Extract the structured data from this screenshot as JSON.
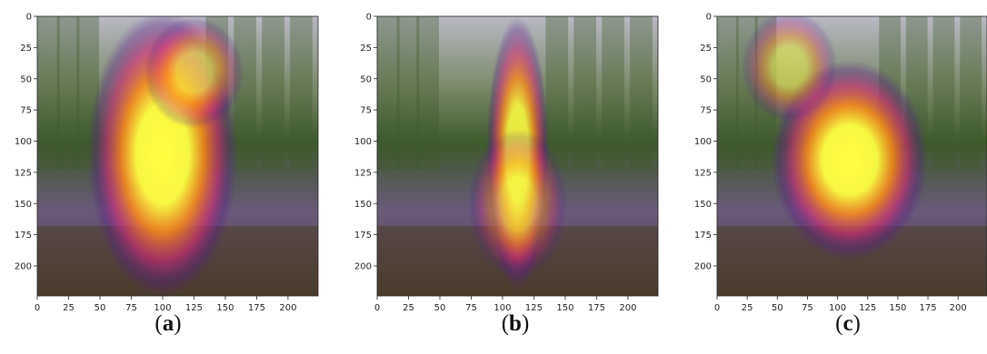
{
  "colors": {
    "background": "#ffffff",
    "axis": "#222222",
    "heat_hot": "#ffff40",
    "heat_warm": "#ff8a1a",
    "heat_mid": "#d6297a",
    "heat_cool": "#5a1a8a",
    "foliage": "#3e5a2c",
    "soil": "#4a3c2c",
    "sky": "#b9b9c4"
  },
  "chart_data": [
    {
      "type": "heatmap",
      "caption": "a",
      "x_ticks": [
        0,
        25,
        50,
        75,
        100,
        125,
        150,
        175,
        200
      ],
      "y_ticks": [
        0,
        25,
        50,
        75,
        100,
        125,
        150,
        175,
        200
      ],
      "xlim": [
        0,
        224
      ],
      "ylim": [
        224,
        0
      ],
      "hotspots": [
        {
          "x": 100,
          "y": 110,
          "rx": 60,
          "ry": 115,
          "intensity": 1.0
        },
        {
          "x": 125,
          "y": 45,
          "rx": 40,
          "ry": 45,
          "intensity": 0.6
        }
      ]
    },
    {
      "type": "heatmap",
      "caption": "b",
      "x_ticks": [
        0,
        25,
        50,
        75,
        100,
        125,
        150,
        175,
        200
      ],
      "y_ticks": [
        0,
        25,
        50,
        75,
        100,
        125,
        150,
        175,
        200
      ],
      "xlim": [
        0,
        224
      ],
      "ylim": [
        224,
        0
      ],
      "hotspots": [
        {
          "x": 112,
          "y": 110,
          "rx": 25,
          "ry": 110,
          "intensity": 0.9
        },
        {
          "x": 112,
          "y": 150,
          "rx": 40,
          "ry": 60,
          "intensity": 0.5
        }
      ]
    },
    {
      "type": "heatmap",
      "caption": "c",
      "x_ticks": [
        0,
        25,
        50,
        75,
        100,
        125,
        150,
        175,
        200
      ],
      "y_ticks": [
        0,
        25,
        50,
        75,
        100,
        125,
        150,
        175,
        200
      ],
      "xlim": [
        0,
        224
      ],
      "ylim": [
        224,
        0
      ],
      "hotspots": [
        {
          "x": 110,
          "y": 115,
          "rx": 65,
          "ry": 80,
          "intensity": 1.0
        },
        {
          "x": 60,
          "y": 40,
          "rx": 40,
          "ry": 45,
          "intensity": 0.5
        }
      ]
    }
  ]
}
